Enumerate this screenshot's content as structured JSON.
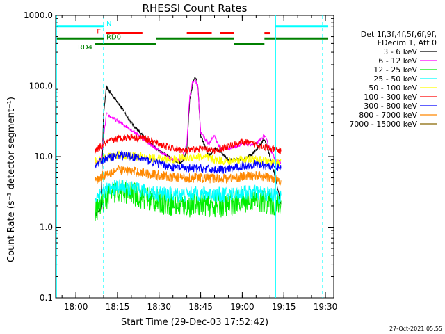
{
  "chart_data": {
    "type": "line",
    "title": "RHESSI Count Rates",
    "xlabel": "Start Time (29-Dec-03 17:52:42)",
    "ylabel": "Count Rate (s⁻¹ detector segment⁻¹)",
    "ylim": [
      0.1,
      1000
    ],
    "y_scale": "log",
    "y_tick_labels": [
      "0.1",
      "1.0",
      "10.0",
      "100.0",
      "1000.0"
    ],
    "y_tick_values": [
      0.1,
      1,
      10,
      100,
      1000
    ],
    "xlim": [
      "17:52:42",
      "19:33:00"
    ],
    "x_tick_labels": [
      "18:00",
      "18:15",
      "18:30",
      "18:45",
      "19:00",
      "19:15",
      "19:30"
    ],
    "x_tick_values": [
      "18:00",
      "18:15",
      "18:30",
      "18:45",
      "19:00",
      "19:15",
      "19:30"
    ],
    "legend_header": [
      "Det 1f,3f,4f,5f,6f,9f,",
      "FDecim 1, Att 0"
    ],
    "legend_placement": "right",
    "series": [
      {
        "name": "3 - 6 keV",
        "color": "#000000",
        "x": [
          "18:07",
          "18:09",
          "18:10",
          "18:11",
          "18:15",
          "18:20",
          "18:25",
          "18:30",
          "18:35",
          "18:38",
          "18:40",
          "18:41",
          "18:42",
          "18:43",
          "18:44",
          "18:45",
          "18:48",
          "18:50",
          "18:52",
          "18:55",
          "19:00",
          "19:05",
          "19:08",
          "19:10",
          "19:12",
          "19:14"
        ],
        "y": [
          1.5,
          1.8,
          40,
          95,
          60,
          30,
          18,
          12,
          9,
          8,
          12,
          60,
          100,
          140,
          100,
          20,
          10,
          13,
          12,
          9,
          9,
          12,
          18,
          10,
          5,
          2
        ]
      },
      {
        "name": "6 - 12 keV",
        "color": "#ff00ff",
        "x": [
          "18:07",
          "18:09",
          "18:10",
          "18:11",
          "18:15",
          "18:20",
          "18:25",
          "18:30",
          "18:35",
          "18:38",
          "18:40",
          "18:41",
          "18:42",
          "18:43",
          "18:44",
          "18:45",
          "18:48",
          "18:50",
          "18:52",
          "18:55",
          "19:00",
          "19:05",
          "19:08",
          "19:10",
          "19:12",
          "19:14"
        ],
        "y": [
          8,
          9,
          18,
          40,
          32,
          24,
          17,
          12,
          9,
          9,
          15,
          70,
          110,
          120,
          100,
          22,
          15,
          20,
          13,
          13,
          15,
          15,
          20,
          13,
          9,
          8
        ]
      },
      {
        "name": "12 - 25 keV",
        "color": "#00ee00",
        "x": [
          "18:07",
          "18:10",
          "18:15",
          "18:20",
          "18:25",
          "18:30",
          "18:35",
          "18:40",
          "18:45",
          "18:50",
          "18:55",
          "19:00",
          "19:05",
          "19:10",
          "19:14"
        ],
        "y": [
          1.7,
          2.5,
          3.3,
          3.0,
          2.6,
          2.3,
          2.1,
          2.0,
          2.2,
          2.0,
          2.1,
          2.4,
          2.4,
          2.2,
          2.0
        ]
      },
      {
        "name": "25 - 50 keV",
        "color": "#00ffff",
        "x": [
          "18:07",
          "18:10",
          "18:15",
          "18:20",
          "18:25",
          "18:30",
          "18:35",
          "18:40",
          "18:45",
          "18:50",
          "18:55",
          "19:00",
          "19:05",
          "19:10",
          "19:14"
        ],
        "y": [
          2.6,
          3.2,
          3.8,
          3.5,
          3.2,
          3.0,
          2.9,
          2.9,
          3.0,
          2.9,
          2.9,
          3.1,
          3.1,
          2.9,
          2.7
        ]
      },
      {
        "name": "50 - 100 keV",
        "color": "#ffff00",
        "x": [
          "18:07",
          "18:10",
          "18:15",
          "18:20",
          "18:25",
          "18:30",
          "18:35",
          "18:40",
          "18:45",
          "18:50",
          "18:55",
          "19:00",
          "19:05",
          "19:10",
          "19:14"
        ],
        "y": [
          8.5,
          9.5,
          10.5,
          10.2,
          9.8,
          9.2,
          9.0,
          9.6,
          10.0,
          9.0,
          8.5,
          9.2,
          9.0,
          8.5,
          8.0
        ]
      },
      {
        "name": "100 - 300 keV",
        "color": "#ff0000",
        "x": [
          "18:07",
          "18:10",
          "18:15",
          "18:20",
          "18:25",
          "18:30",
          "18:35",
          "18:40",
          "18:45",
          "18:50",
          "18:55",
          "19:00",
          "19:05",
          "19:10",
          "19:14"
        ],
        "y": [
          12,
          15,
          18,
          19,
          18,
          15,
          13,
          12,
          13,
          12,
          14,
          16,
          15,
          13,
          12
        ]
      },
      {
        "name": "300 - 800 keV",
        "color": "#0000ff",
        "x": [
          "18:07",
          "18:10",
          "18:15",
          "18:20",
          "18:25",
          "18:30",
          "18:35",
          "18:40",
          "18:45",
          "18:50",
          "18:55",
          "19:00",
          "19:05",
          "19:10",
          "19:14"
        ],
        "y": [
          7.5,
          9,
          10.5,
          10,
          9,
          8,
          7,
          6.8,
          6.8,
          6.5,
          6.6,
          7.4,
          7.8,
          7.3,
          7.0
        ]
      },
      {
        "name": "800 - 7000 keV",
        "color": "#ff8800",
        "x": [
          "18:07",
          "18:10",
          "18:15",
          "18:20",
          "18:25",
          "18:30",
          "18:35",
          "18:40",
          "18:45",
          "18:50",
          "18:55",
          "19:00",
          "19:05",
          "19:10",
          "19:14"
        ],
        "y": [
          4.5,
          5.5,
          6.5,
          6.2,
          5.8,
          5.4,
          5.1,
          5.0,
          5.0,
          4.9,
          4.9,
          5.2,
          5.4,
          5.0,
          4.6
        ]
      },
      {
        "name": "7000 - 15000 keV",
        "color": "#886600",
        "x": [],
        "y": []
      }
    ],
    "flag_labels": {
      "saa": "N",
      "flare": "F",
      "rd0": "RD0",
      "rd4": "RD4"
    },
    "flags": [
      {
        "label": "N",
        "color": "#00ffff",
        "level": 700,
        "segments": [
          [
            "17:52:42",
            "18:10"
          ],
          [
            "19:12",
            "19:31"
          ]
        ]
      },
      {
        "label": "F",
        "color": "#ff0000",
        "level": 560,
        "segments": [
          [
            "18:11",
            "18:24"
          ],
          [
            "18:40",
            "18:49"
          ],
          [
            "18:52",
            "18:57"
          ],
          [
            "19:08",
            "19:10"
          ]
        ]
      },
      {
        "label": "RD0",
        "color": "#008000",
        "level": 470,
        "segments": [
          [
            "17:52:42",
            "18:10"
          ],
          [
            "18:29",
            "18:57"
          ],
          [
            "19:08",
            "19:31"
          ]
        ]
      },
      {
        "label": "RD4",
        "color": "#008000",
        "level": 390,
        "segments": [
          [
            "18:07",
            "18:10"
          ],
          [
            "18:10",
            "18:29"
          ],
          [
            "18:57",
            "19:08"
          ]
        ]
      }
    ],
    "vlines": [
      {
        "time": "17:53",
        "color": "#00ffff",
        "style": "solid"
      },
      {
        "time": "18:10",
        "color": "#00ffff",
        "style": "dashed"
      },
      {
        "time": "19:12",
        "color": "#00ffff",
        "style": "solid"
      },
      {
        "time": "19:29",
        "color": "#00ffff",
        "style": "dashed"
      }
    ],
    "timestamp": "27-Oct-2021 05:55"
  }
}
